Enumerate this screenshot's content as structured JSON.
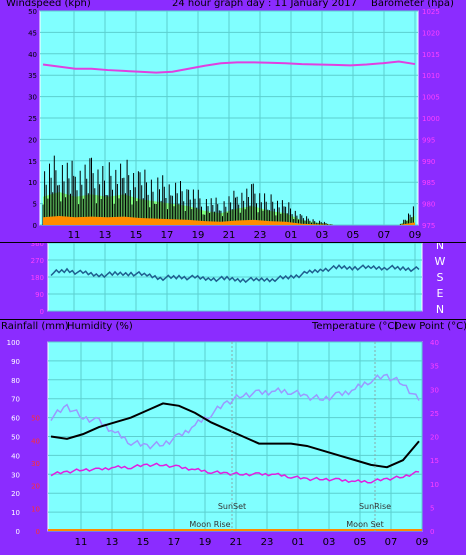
{
  "top_chart": {
    "title": "24 hour graph day : 11 January 2017",
    "left_label": "Windspeed (kph)",
    "right_label": "Barometer (hpa)",
    "left_ticks": [
      "0",
      "5",
      "10",
      "15",
      "20",
      "25",
      "30",
      "35",
      "40",
      "45",
      "50"
    ],
    "right_ticks": [
      "975",
      "980",
      "985",
      "990",
      "995",
      "1000",
      "1005",
      "1010",
      "1015",
      "1020",
      "1025"
    ],
    "x_ticks": [
      "11",
      "13",
      "15",
      "17",
      "19",
      "21",
      "23",
      "01",
      "03",
      "05",
      "07",
      "09"
    ]
  },
  "direction_chart": {
    "left_ticks": [
      "360",
      "270",
      "180",
      "90",
      "0"
    ],
    "compass": [
      "N",
      "W",
      "S",
      "E",
      "N"
    ]
  },
  "bottom_chart": {
    "rain_label": "Rainfall (mm)",
    "humidity_label": "Humidity (%)",
    "temp_label": "Temperature (°C)",
    "dew_label": "Dew Point (°C)",
    "humidity_ticks": [
      "0",
      "10",
      "20",
      "30",
      "40",
      "50",
      "60",
      "70",
      "80",
      "90",
      "100"
    ],
    "rain_ticks": [
      "0",
      "10",
      "20",
      "30",
      "40",
      "50"
    ],
    "temp_ticks": [
      "0",
      "5",
      "10",
      "15",
      "20",
      "25",
      "30",
      "35",
      "40"
    ],
    "x_ticks": [
      "11",
      "13",
      "15",
      "17",
      "19",
      "21",
      "23",
      "01",
      "03",
      "05",
      "07",
      "09"
    ],
    "annotations": {
      "sunset": "SunSet",
      "sunrise": "SunRise",
      "moonrise": "Moon Rise",
      "moonset": "Moon Set"
    }
  },
  "colors": {
    "panel": "#8b2cff",
    "plot": "#80ffff",
    "pressure": "#e040e0",
    "wind": "#000000",
    "gust_fill": "#7fff7f",
    "avg": "#ff8c00",
    "direction": "#1f5f8f",
    "temperature": "#000000",
    "humidity": "#9a9aff",
    "dewpoint": "#e020e0"
  },
  "chart_data": [
    {
      "type": "line",
      "title": "24 hour graph day : 11 January 2017",
      "x": [
        "10",
        "11",
        "12",
        "13",
        "14",
        "15",
        "16",
        "17",
        "18",
        "19",
        "20",
        "21",
        "22",
        "23",
        "00",
        "01",
        "02",
        "03",
        "04",
        "05",
        "06",
        "07",
        "08",
        "09"
      ],
      "series": [
        {
          "name": "Barometer (hpa)",
          "values": [
            1012.5,
            1012,
            1011.5,
            1011.5,
            1011.2,
            1011,
            1010.8,
            1010.6,
            1010.8,
            1011.5,
            1012.2,
            1012.8,
            1013,
            1013,
            1012.9,
            1012.8,
            1012.6,
            1012.5,
            1012.4,
            1012.3,
            1012.5,
            1012.8,
            1013.2,
            1012.6
          ]
        },
        {
          "name": "Windspeed (kph)",
          "values": [
            12,
            14,
            12,
            13,
            12,
            13,
            11,
            10,
            9,
            8,
            6,
            5,
            7,
            8,
            6,
            5,
            2,
            1,
            0,
            0,
            0,
            0,
            0,
            4
          ]
        }
      ],
      "ylim": [
        0,
        50
      ],
      "y2lim": [
        975,
        1025
      ]
    },
    {
      "type": "line",
      "x": [
        "10",
        "11",
        "12",
        "13",
        "14",
        "15",
        "16",
        "17",
        "18",
        "19",
        "20",
        "21",
        "22",
        "23",
        "00",
        "01",
        "02",
        "03",
        "04",
        "05",
        "06",
        "07",
        "08",
        "09"
      ],
      "series": [
        {
          "values": [
            200,
            215,
            200,
            190,
            195,
            200,
            190,
            175,
            180,
            175,
            170,
            170,
            165,
            165,
            170,
            180,
            200,
            220,
            230,
            230,
            230,
            230,
            225,
            220
          ]
        }
      ],
      "ylim": [
        0,
        360
      ]
    },
    {
      "type": "line",
      "x": [
        "10",
        "11",
        "12",
        "13",
        "14",
        "15",
        "16",
        "17",
        "18",
        "19",
        "20",
        "21",
        "22",
        "23",
        "00",
        "01",
        "02",
        "03",
        "04",
        "05",
        "06",
        "07",
        "08",
        "09"
      ],
      "series": [
        {
          "name": "Temperature (°C)",
          "values": [
            20,
            19.5,
            20.5,
            22,
            23,
            24,
            25.5,
            27,
            26.5,
            25,
            23,
            21.5,
            20,
            18.5,
            18.5,
            18.5,
            18,
            17,
            16,
            15,
            14,
            13.5,
            15,
            19
          ]
        },
        {
          "name": "Humidity (%)",
          "values": [
            60,
            66,
            60,
            58,
            52,
            47,
            45,
            46,
            50,
            56,
            62,
            68,
            72,
            73,
            74,
            74,
            71,
            70,
            72,
            75,
            80,
            82,
            78,
            69
          ]
        },
        {
          "name": "Dew Point (°C)",
          "values": [
            12,
            12.5,
            13,
            13,
            13.5,
            13.5,
            14,
            14,
            13.5,
            13,
            12.5,
            12.2,
            12,
            12,
            12,
            11.5,
            11,
            11,
            10.8,
            10.5,
            10.5,
            11,
            11.5,
            12.5
          ]
        },
        {
          "name": "Rainfall (mm)",
          "values": [
            0,
            0,
            0,
            0,
            0,
            0,
            0,
            0,
            0,
            0,
            0,
            0,
            0,
            0,
            0,
            0,
            0,
            0,
            0,
            0,
            0,
            0,
            0,
            0
          ]
        }
      ],
      "ylim": [
        0,
        100
      ],
      "y2lim": [
        0,
        40
      ]
    }
  ]
}
